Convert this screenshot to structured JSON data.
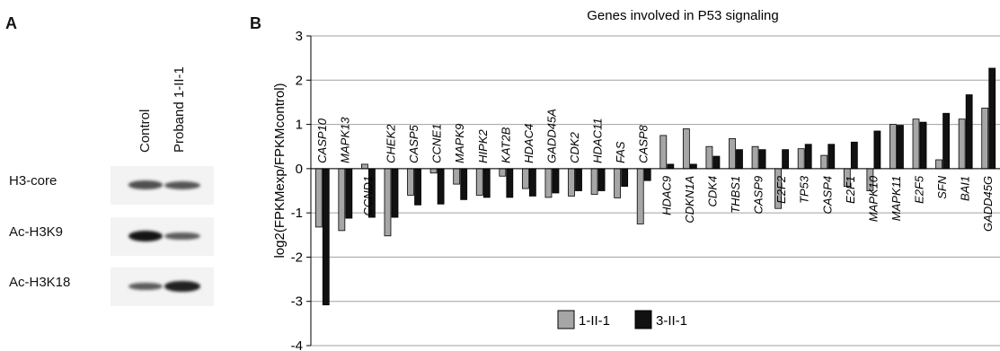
{
  "panel_a": {
    "letter": "A",
    "lanes": [
      "Control",
      "Proband 1-II-1"
    ],
    "blots": [
      {
        "label": "H3-core",
        "intensity": [
          0.55,
          0.5
        ]
      },
      {
        "label": "Ac-H3K9",
        "intensity": [
          1.0,
          0.45
        ]
      },
      {
        "label": "Ac-H3K18",
        "intensity": [
          0.45,
          0.9
        ]
      }
    ]
  },
  "panel_b": {
    "letter": "B"
  },
  "chart_data": {
    "type": "bar",
    "title": "Genes involved in P53 signaling",
    "ylabel": "log2(FPKMexp/FPKMcontrol)",
    "xlabel": "",
    "ylim": [
      -4,
      3
    ],
    "yticks": [
      -4,
      -3,
      -2,
      -1,
      0,
      1,
      2,
      3
    ],
    "grid": true,
    "legend_position": "bottom-center",
    "categories": [
      "CASP10",
      "MAPK13",
      "CCND1",
      "CHEK2",
      "CASP5",
      "CCNE1",
      "MAPK9",
      "HIPK2",
      "KAT2B",
      "HDAC4",
      "GADD45A",
      "CDK2",
      "HDAC11",
      "FAS",
      "CASP8",
      "HDAC9",
      "CDKN1A",
      "CDK4",
      "THBS1",
      "CASP9",
      "E2F2",
      "TP53",
      "CASP4",
      "E2F1",
      "MAPK10",
      "MAPK11",
      "E2F5",
      "SFN",
      "BAI1",
      "GADD45G"
    ],
    "series": [
      {
        "name": "1-II-1",
        "color": "#a6a6a6",
        "values": [
          -1.32,
          -1.4,
          0.1,
          -1.52,
          -0.6,
          -0.1,
          -0.35,
          -0.6,
          -0.17,
          -0.45,
          -0.65,
          -0.62,
          -0.58,
          -0.66,
          -1.25,
          0.75,
          0.9,
          0.5,
          0.68,
          0.5,
          -0.9,
          0.45,
          0.3,
          -0.4,
          -0.5,
          1.0,
          1.12,
          0.2,
          1.12,
          1.37
        ]
      },
      {
        "name": "3-II-1",
        "color": "#111111",
        "values": [
          -3.08,
          -1.12,
          -1.1,
          -1.1,
          -0.82,
          -0.8,
          -0.7,
          -0.65,
          -0.65,
          -0.62,
          -0.55,
          -0.5,
          -0.5,
          -0.4,
          -0.27,
          0.1,
          0.1,
          0.28,
          0.43,
          0.43,
          0.43,
          0.55,
          0.55,
          0.6,
          0.85,
          0.98,
          1.05,
          1.25,
          1.67,
          2.27
        ]
      }
    ]
  }
}
